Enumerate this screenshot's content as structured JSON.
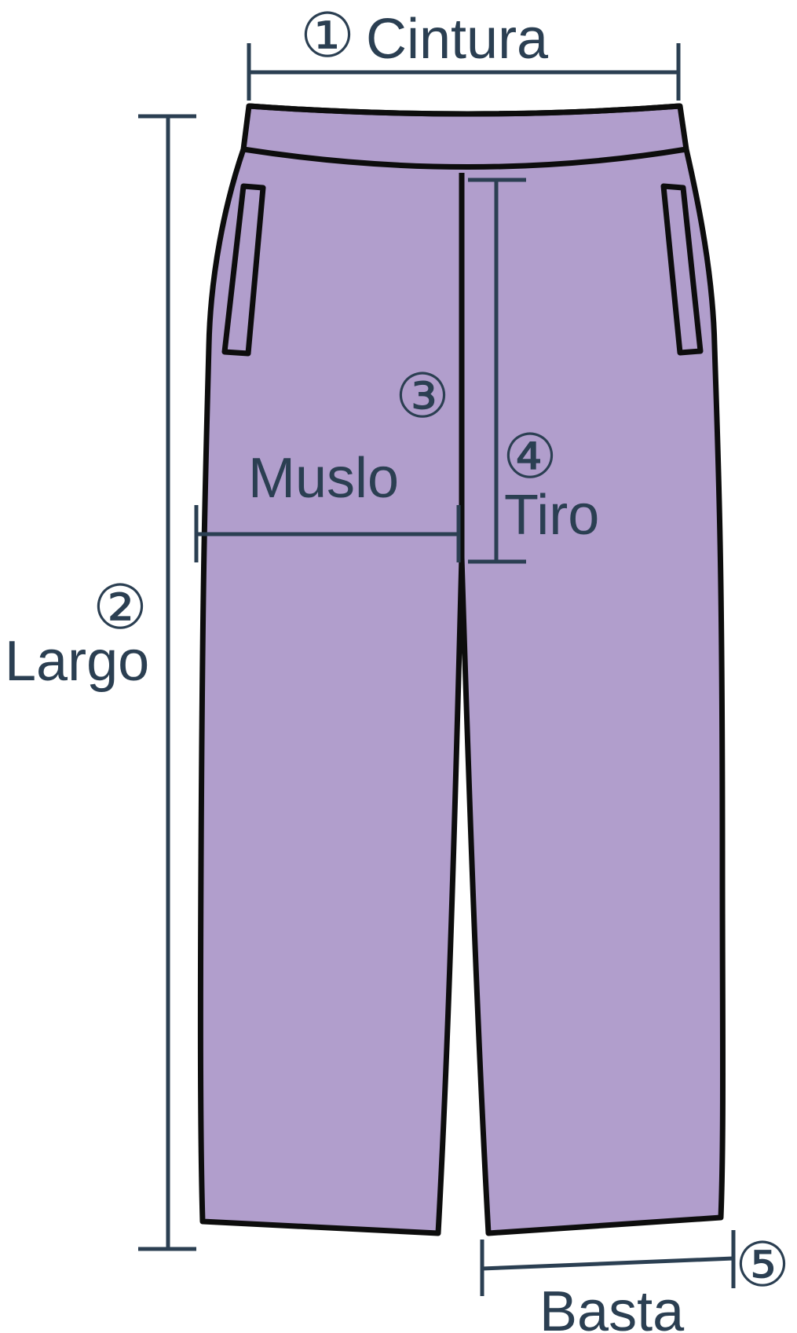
{
  "colors": {
    "garment_fill": "#b19ecc",
    "garment_outline": "#0d0d0d",
    "measure_line": "#2b3f52",
    "label_text": "#2b3f52",
    "background": "#ffffff"
  },
  "measurements": [
    {
      "id": 1,
      "marker": "①",
      "label": "Cintura"
    },
    {
      "id": 2,
      "marker": "②",
      "label": "Largo"
    },
    {
      "id": 3,
      "marker": "③",
      "label": "Muslo"
    },
    {
      "id": 4,
      "marker": "④",
      "label": "Tiro"
    },
    {
      "id": 5,
      "marker": "⑤",
      "label": "Basta"
    }
  ]
}
